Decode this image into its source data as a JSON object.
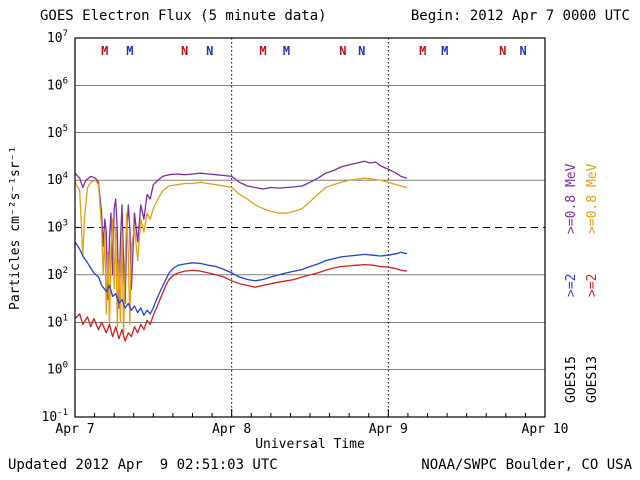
{
  "header": {
    "begin": "Begin: 2012 Apr 7 0000 UTC"
  },
  "footer": {
    "updated": "Updated 2012 Apr  9 02:51:03 UTC",
    "credit": "NOAA/SWPC Boulder, CO USA"
  },
  "right_labels": {
    "goes15": {
      "energy_high": ">=0.8 MeV",
      "energy_low": ">=2",
      "sat": "GOES15"
    },
    "goes13": {
      "energy_high": ">=0.8 MeV",
      "energy_low": ">=2",
      "sat": "GOES13"
    }
  },
  "chart_data": {
    "type": "line",
    "title": "GOES Electron Flux (5 minute data)",
    "xlabel": "Universal Time",
    "ylabel": "Particles cm⁻²s⁻¹sr⁻¹",
    "xlim": [
      0,
      3
    ],
    "x_tick_positions": [
      0,
      1,
      2,
      3
    ],
    "x_tick_labels": [
      "Apr 7",
      "Apr 8",
      "Apr 9",
      "Apr 10"
    ],
    "x_minor_tick_interval": 0.125,
    "log_ylim": [
      -1,
      7
    ],
    "y_tick_base": "10",
    "y_exponents": [
      7,
      6,
      5,
      4,
      3,
      2,
      1,
      0,
      -1
    ],
    "threshold_exponent": 3,
    "day_boundary_lines": [
      1,
      2
    ],
    "grid": true,
    "legend_position": "right-margin-rotated",
    "sat_markers": [
      {
        "label": "M",
        "color": "#bb1111",
        "x": 0.19
      },
      {
        "label": "M",
        "color": "#2233bb",
        "x": 0.35
      },
      {
        "label": "N",
        "color": "#bb1111",
        "x": 0.7
      },
      {
        "label": "N",
        "color": "#2233bb",
        "x": 0.86
      },
      {
        "label": "M",
        "color": "#bb1111",
        "x": 1.2
      },
      {
        "label": "M",
        "color": "#2233bb",
        "x": 1.35
      },
      {
        "label": "N",
        "color": "#bb1111",
        "x": 1.71
      },
      {
        "label": "N",
        "color": "#2233bb",
        "x": 1.83
      },
      {
        "label": "M",
        "color": "#bb1111",
        "x": 2.22
      },
      {
        "label": "M",
        "color": "#2233bb",
        "x": 2.36
      },
      {
        "label": "N",
        "color": "#bb1111",
        "x": 2.73
      },
      {
        "label": "N",
        "color": "#2233bb",
        "x": 2.86
      }
    ],
    "series": [
      {
        "name": "GOES15 >=0.8 MeV",
        "satellite": "GOES15",
        "energy": ">=0.8 MeV",
        "color": "#7d2e9c",
        "points": [
          [
            0,
            14000
          ],
          [
            0.03,
            11000
          ],
          [
            0.05,
            7000
          ],
          [
            0.07,
            10000
          ],
          [
            0.1,
            12000
          ],
          [
            0.13,
            11000
          ],
          [
            0.15,
            9000
          ],
          [
            0.17,
            2000
          ],
          [
            0.18,
            400
          ],
          [
            0.19,
            1500
          ],
          [
            0.2,
            800
          ],
          [
            0.21,
            30
          ],
          [
            0.22,
            600
          ],
          [
            0.23,
            2000
          ],
          [
            0.24,
            100
          ],
          [
            0.25,
            2500
          ],
          [
            0.26,
            4000
          ],
          [
            0.27,
            800
          ],
          [
            0.28,
            20
          ],
          [
            0.29,
            500
          ],
          [
            0.3,
            3000
          ],
          [
            0.31,
            200
          ],
          [
            0.32,
            25
          ],
          [
            0.33,
            800
          ],
          [
            0.34,
            3000
          ],
          [
            0.35,
            1000
          ],
          [
            0.36,
            50
          ],
          [
            0.38,
            2000
          ],
          [
            0.4,
            500
          ],
          [
            0.42,
            3000
          ],
          [
            0.44,
            1500
          ],
          [
            0.46,
            5000
          ],
          [
            0.48,
            4000
          ],
          [
            0.5,
            8000
          ],
          [
            0.53,
            10000
          ],
          [
            0.56,
            12000
          ],
          [
            0.6,
            13000
          ],
          [
            0.65,
            13500
          ],
          [
            0.7,
            13000
          ],
          [
            0.75,
            13500
          ],
          [
            0.8,
            14000
          ],
          [
            0.85,
            13500
          ],
          [
            0.9,
            13000
          ],
          [
            0.95,
            12500
          ],
          [
            1.0,
            12000
          ],
          [
            1.05,
            9000
          ],
          [
            1.1,
            7500
          ],
          [
            1.15,
            7000
          ],
          [
            1.2,
            6500
          ],
          [
            1.25,
            7000
          ],
          [
            1.3,
            6800
          ],
          [
            1.35,
            7000
          ],
          [
            1.4,
            7200
          ],
          [
            1.45,
            7500
          ],
          [
            1.5,
            9000
          ],
          [
            1.55,
            11000
          ],
          [
            1.6,
            14000
          ],
          [
            1.65,
            16000
          ],
          [
            1.7,
            19000
          ],
          [
            1.75,
            21000
          ],
          [
            1.8,
            23000
          ],
          [
            1.85,
            25000
          ],
          [
            1.88,
            23000
          ],
          [
            1.92,
            24000
          ],
          [
            1.95,
            20000
          ],
          [
            2.0,
            17000
          ],
          [
            2.05,
            14000
          ],
          [
            2.08,
            12000
          ],
          [
            2.12,
            11000
          ]
        ]
      },
      {
        "name": "GOES13 >=0.8 MeV",
        "satellite": "GOES13",
        "energy": ">=0.8 MeV",
        "color": "#e2a018",
        "points": [
          [
            0,
            9000
          ],
          [
            0.03,
            6000
          ],
          [
            0.05,
            250
          ],
          [
            0.06,
            1500
          ],
          [
            0.08,
            7000
          ],
          [
            0.1,
            9000
          ],
          [
            0.13,
            10000
          ],
          [
            0.15,
            8000
          ],
          [
            0.17,
            1000
          ],
          [
            0.18,
            100
          ],
          [
            0.19,
            800
          ],
          [
            0.2,
            15
          ],
          [
            0.21,
            300
          ],
          [
            0.22,
            8
          ],
          [
            0.23,
            400
          ],
          [
            0.24,
            1500
          ],
          [
            0.25,
            50
          ],
          [
            0.26,
            1000
          ],
          [
            0.27,
            8
          ],
          [
            0.28,
            200
          ],
          [
            0.29,
            10
          ],
          [
            0.3,
            800
          ],
          [
            0.31,
            6
          ],
          [
            0.32,
            150
          ],
          [
            0.33,
            2000
          ],
          [
            0.34,
            300
          ],
          [
            0.35,
            9
          ],
          [
            0.36,
            400
          ],
          [
            0.38,
            1000
          ],
          [
            0.4,
            200
          ],
          [
            0.42,
            1500
          ],
          [
            0.44,
            800
          ],
          [
            0.46,
            2000
          ],
          [
            0.48,
            1500
          ],
          [
            0.5,
            2500
          ],
          [
            0.53,
            4000
          ],
          [
            0.56,
            6000
          ],
          [
            0.6,
            7500
          ],
          [
            0.65,
            8000
          ],
          [
            0.7,
            8500
          ],
          [
            0.75,
            8500
          ],
          [
            0.8,
            9000
          ],
          [
            0.85,
            8500
          ],
          [
            0.9,
            8000
          ],
          [
            0.95,
            7500
          ],
          [
            1.0,
            7000
          ],
          [
            1.05,
            5000
          ],
          [
            1.1,
            4000
          ],
          [
            1.15,
            3000
          ],
          [
            1.2,
            2500
          ],
          [
            1.25,
            2200
          ],
          [
            1.3,
            2000
          ],
          [
            1.35,
            2000
          ],
          [
            1.4,
            2200
          ],
          [
            1.45,
            2500
          ],
          [
            1.5,
            3500
          ],
          [
            1.55,
            5000
          ],
          [
            1.6,
            7000
          ],
          [
            1.65,
            8000
          ],
          [
            1.7,
            9000
          ],
          [
            1.75,
            10000
          ],
          [
            1.8,
            10500
          ],
          [
            1.85,
            11000
          ],
          [
            1.9,
            10500
          ],
          [
            1.95,
            10000
          ],
          [
            2.0,
            9000
          ],
          [
            2.05,
            8000
          ],
          [
            2.12,
            7000
          ]
        ]
      },
      {
        "name": "GOES15 >=2 MeV",
        "satellite": "GOES15",
        "energy": ">=2 MeV",
        "color": "#2244cc",
        "points": [
          [
            0,
            500
          ],
          [
            0.03,
            350
          ],
          [
            0.05,
            250
          ],
          [
            0.08,
            180
          ],
          [
            0.1,
            140
          ],
          [
            0.12,
            110
          ],
          [
            0.15,
            90
          ],
          [
            0.17,
            60
          ],
          [
            0.2,
            45
          ],
          [
            0.22,
            60
          ],
          [
            0.24,
            35
          ],
          [
            0.26,
            40
          ],
          [
            0.28,
            25
          ],
          [
            0.3,
            30
          ],
          [
            0.32,
            20
          ],
          [
            0.34,
            25
          ],
          [
            0.36,
            18
          ],
          [
            0.38,
            22
          ],
          [
            0.4,
            16
          ],
          [
            0.42,
            20
          ],
          [
            0.44,
            14
          ],
          [
            0.46,
            18
          ],
          [
            0.48,
            15
          ],
          [
            0.5,
            20
          ],
          [
            0.52,
            30
          ],
          [
            0.55,
            50
          ],
          [
            0.58,
            80
          ],
          [
            0.6,
            110
          ],
          [
            0.63,
            140
          ],
          [
            0.66,
            160
          ],
          [
            0.7,
            170
          ],
          [
            0.75,
            180
          ],
          [
            0.8,
            175
          ],
          [
            0.85,
            160
          ],
          [
            0.9,
            150
          ],
          [
            0.95,
            130
          ],
          [
            1.0,
            110
          ],
          [
            1.05,
            90
          ],
          [
            1.1,
            80
          ],
          [
            1.15,
            75
          ],
          [
            1.2,
            80
          ],
          [
            1.25,
            90
          ],
          [
            1.3,
            100
          ],
          [
            1.35,
            110
          ],
          [
            1.4,
            120
          ],
          [
            1.45,
            130
          ],
          [
            1.5,
            150
          ],
          [
            1.55,
            170
          ],
          [
            1.6,
            200
          ],
          [
            1.65,
            220
          ],
          [
            1.7,
            240
          ],
          [
            1.75,
            250
          ],
          [
            1.8,
            260
          ],
          [
            1.85,
            270
          ],
          [
            1.9,
            260
          ],
          [
            1.95,
            250
          ],
          [
            2.0,
            260
          ],
          [
            2.05,
            280
          ],
          [
            2.08,
            300
          ],
          [
            2.12,
            280
          ]
        ]
      },
      {
        "name": "GOES13 >=2 MeV",
        "satellite": "GOES13",
        "energy": ">=2 MeV",
        "color": "#cc2222",
        "points": [
          [
            0,
            12
          ],
          [
            0.03,
            15
          ],
          [
            0.05,
            9
          ],
          [
            0.08,
            13
          ],
          [
            0.1,
            8
          ],
          [
            0.12,
            12
          ],
          [
            0.15,
            7
          ],
          [
            0.17,
            10
          ],
          [
            0.2,
            6
          ],
          [
            0.22,
            9
          ],
          [
            0.24,
            5
          ],
          [
            0.26,
            8
          ],
          [
            0.28,
            4.5
          ],
          [
            0.3,
            7
          ],
          [
            0.32,
            4
          ],
          [
            0.34,
            6
          ],
          [
            0.36,
            5
          ],
          [
            0.38,
            8
          ],
          [
            0.4,
            6
          ],
          [
            0.42,
            9
          ],
          [
            0.44,
            7
          ],
          [
            0.46,
            11
          ],
          [
            0.48,
            9
          ],
          [
            0.5,
            14
          ],
          [
            0.52,
            20
          ],
          [
            0.55,
            35
          ],
          [
            0.58,
            60
          ],
          [
            0.6,
            80
          ],
          [
            0.63,
            100
          ],
          [
            0.66,
            110
          ],
          [
            0.7,
            120
          ],
          [
            0.75,
            125
          ],
          [
            0.8,
            120
          ],
          [
            0.85,
            110
          ],
          [
            0.9,
            100
          ],
          [
            0.95,
            90
          ],
          [
            1.0,
            75
          ],
          [
            1.05,
            65
          ],
          [
            1.1,
            60
          ],
          [
            1.15,
            55
          ],
          [
            1.2,
            60
          ],
          [
            1.25,
            65
          ],
          [
            1.3,
            70
          ],
          [
            1.35,
            75
          ],
          [
            1.4,
            80
          ],
          [
            1.45,
            90
          ],
          [
            1.5,
            100
          ],
          [
            1.55,
            110
          ],
          [
            1.6,
            125
          ],
          [
            1.65,
            140
          ],
          [
            1.7,
            150
          ],
          [
            1.75,
            155
          ],
          [
            1.8,
            160
          ],
          [
            1.85,
            165
          ],
          [
            1.9,
            160
          ],
          [
            1.95,
            150
          ],
          [
            2.0,
            145
          ],
          [
            2.05,
            135
          ],
          [
            2.08,
            125
          ],
          [
            2.12,
            120
          ]
        ]
      }
    ]
  }
}
